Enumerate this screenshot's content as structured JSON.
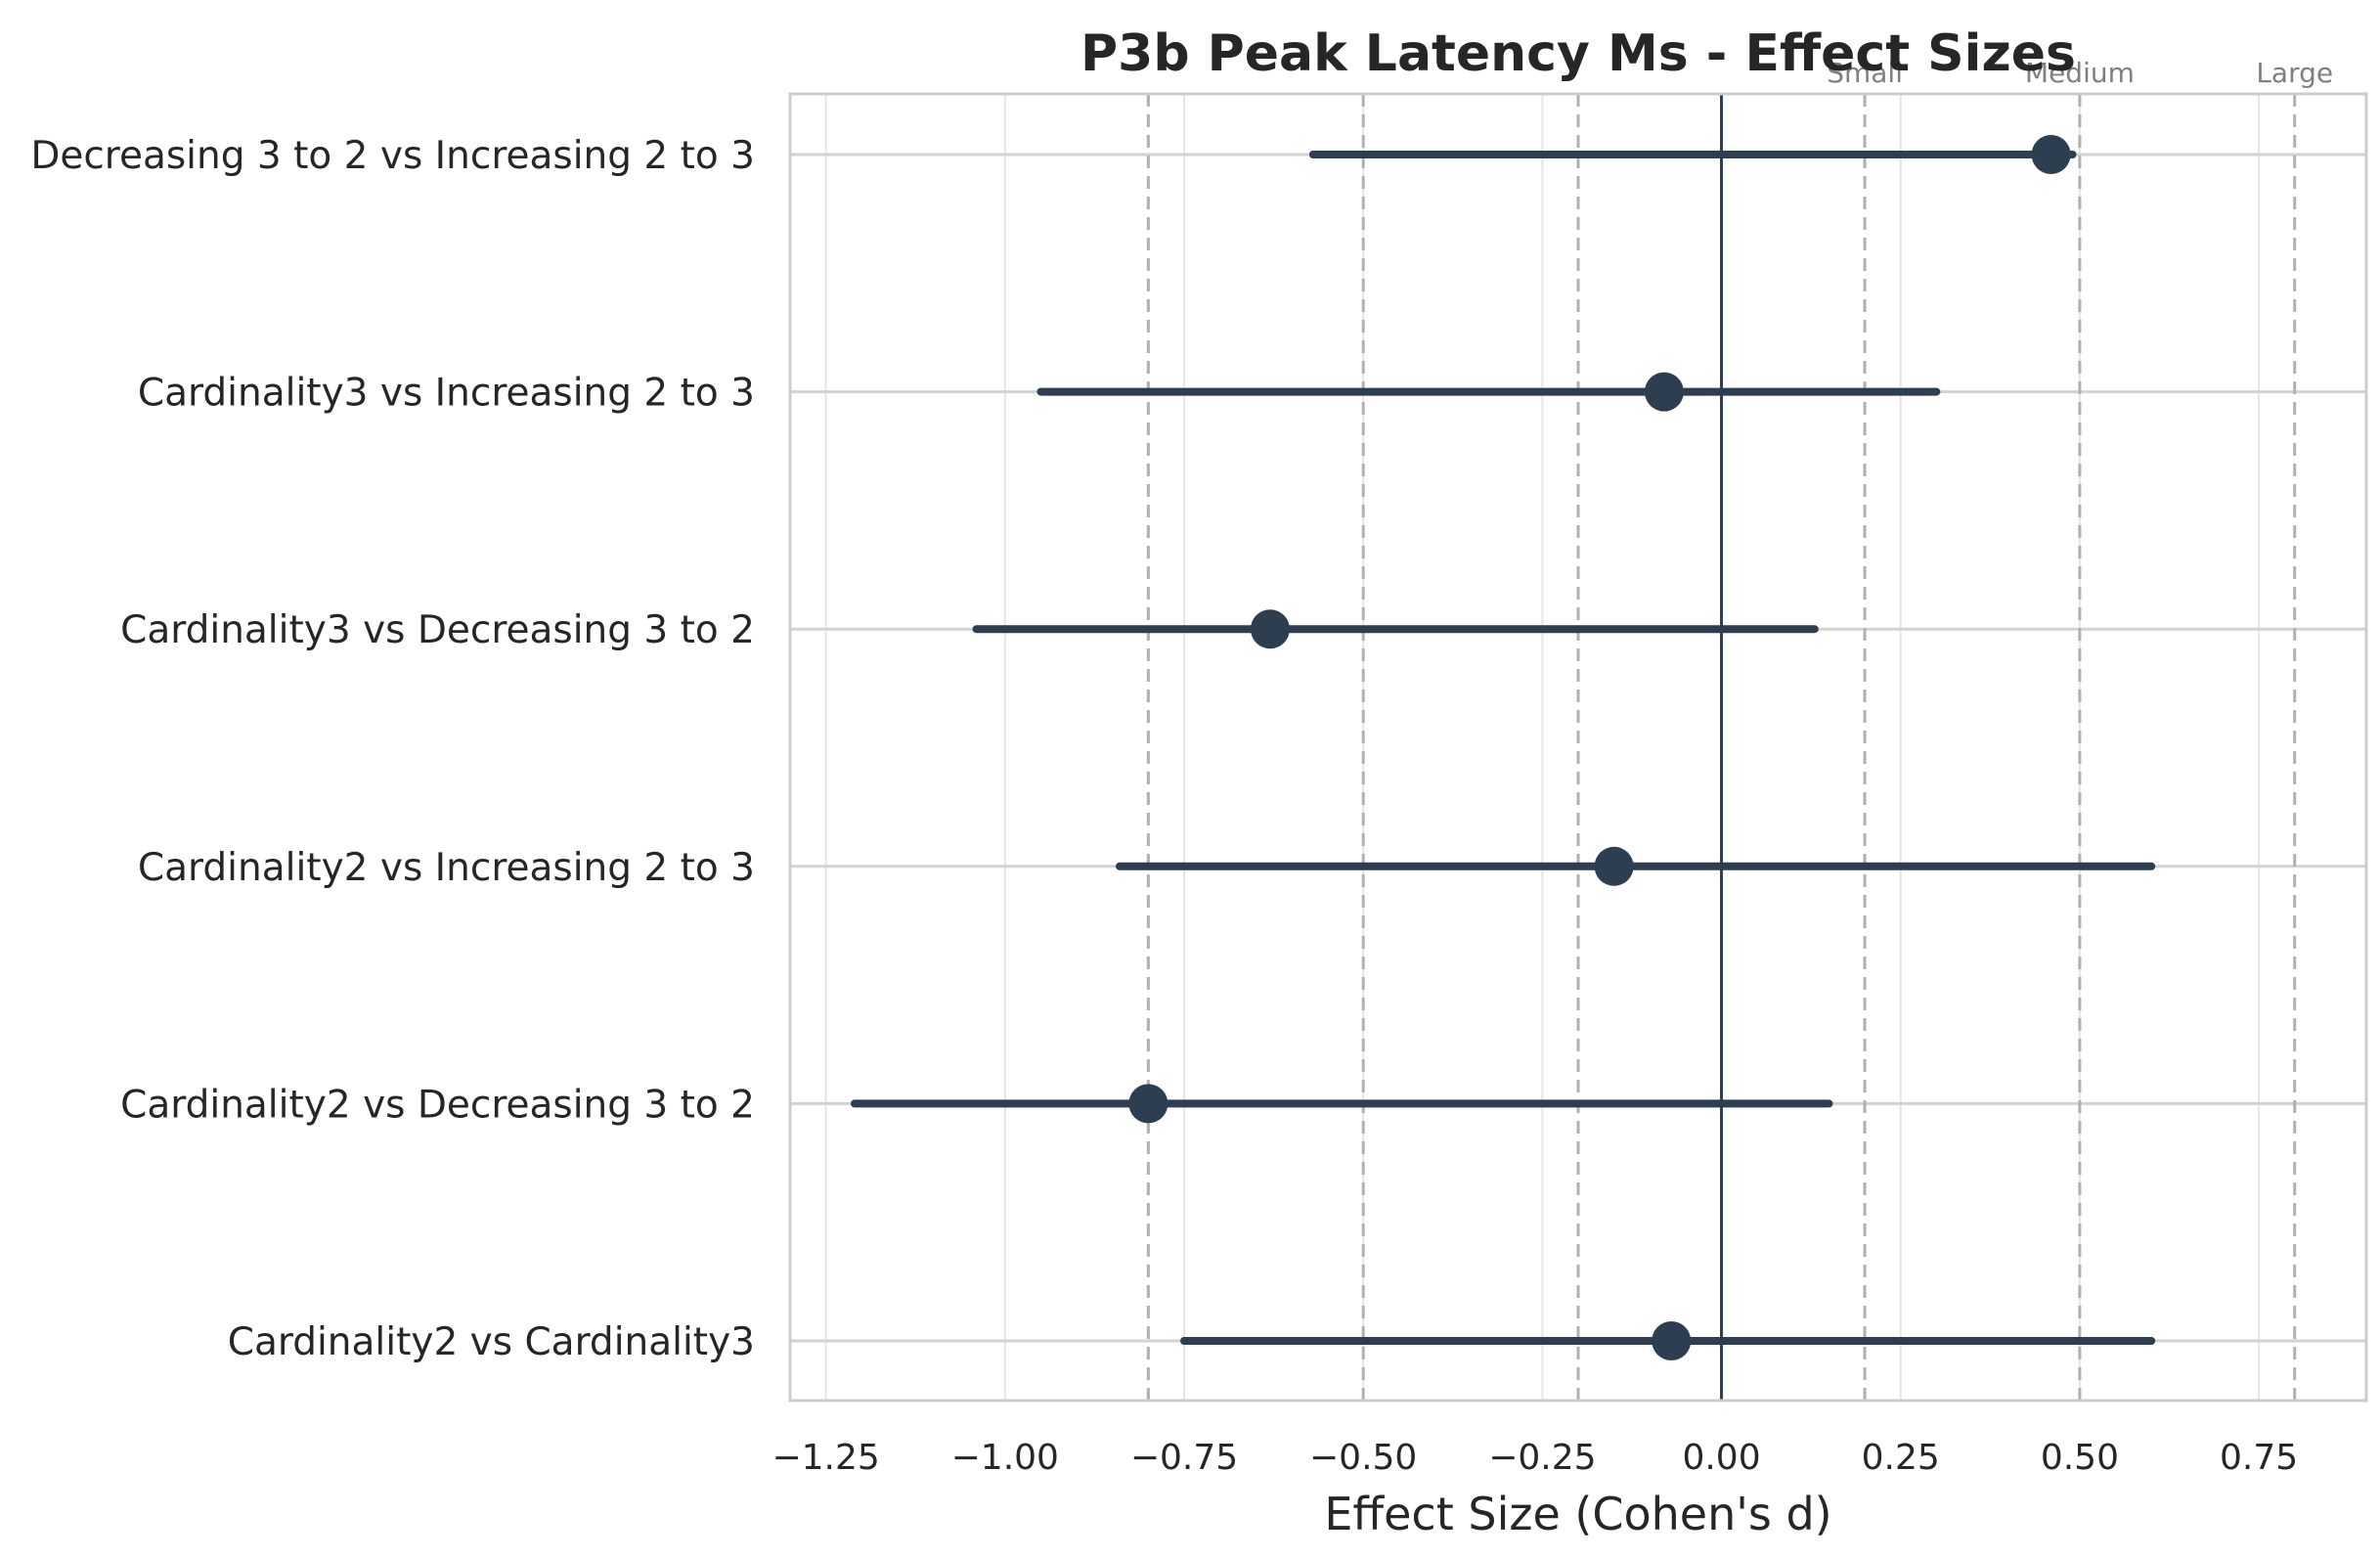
{
  "chart_data": {
    "type": "forest",
    "title": "P3b Peak Latency Ms - Effect Sizes",
    "xlabel": "Effect Size (Cohen's d)",
    "ylabel": "",
    "xlim": [
      -1.3,
      0.9
    ],
    "x_ticks": [
      -1.25,
      -1.0,
      -0.75,
      -0.5,
      -0.25,
      0.0,
      0.25,
      0.5,
      0.75
    ],
    "x_tick_labels": [
      "−1.25",
      "−1.00",
      "−0.75",
      "−0.50",
      "−0.25",
      "0.00",
      "0.25",
      "0.50",
      "0.75"
    ],
    "grid": true,
    "zero_line": 0.0,
    "reference_lines": [
      {
        "value": -0.8
      },
      {
        "value": -0.5
      },
      {
        "value": -0.2
      },
      {
        "value": 0.2,
        "label": "Small"
      },
      {
        "value": 0.5,
        "label": "Medium"
      },
      {
        "value": 0.8,
        "label": "Large"
      }
    ],
    "comparisons": [
      {
        "label": "Decreasing 3 to 2 vs Increasing 2 to 3",
        "d": 0.46,
        "ci_low": -0.57,
        "ci_high": 0.49
      },
      {
        "label": "Cardinality3 vs Increasing 2 to 3",
        "d": -0.08,
        "ci_low": -0.95,
        "ci_high": 0.3
      },
      {
        "label": "Cardinality3 vs Decreasing 3 to 2",
        "d": -0.63,
        "ci_low": -1.04,
        "ci_high": 0.13
      },
      {
        "label": "Cardinality2 vs Increasing 2 to 3",
        "d": -0.15,
        "ci_low": -0.84,
        "ci_high": 0.6
      },
      {
        "label": "Cardinality2 vs Decreasing 3 to 2",
        "d": -0.8,
        "ci_low": -1.21,
        "ci_high": 0.15
      },
      {
        "label": "Cardinality2 vs Cardinality3",
        "d": -0.07,
        "ci_low": -0.75,
        "ci_high": 0.6
      }
    ],
    "colors": {
      "marker": "#2c3e50",
      "zero_line": "#2c3e50",
      "reference_line": "#b0b0b0",
      "grid": "#e5e5e5",
      "spine": "#cccccc"
    }
  }
}
